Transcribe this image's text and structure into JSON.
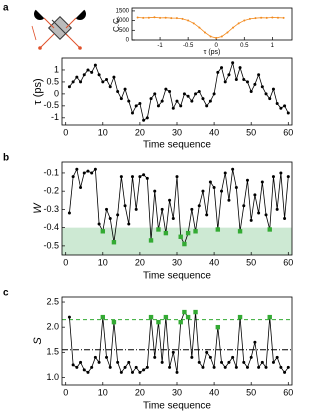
{
  "panel_labels": [
    "a",
    "b",
    "c"
  ],
  "chart_data": [
    {
      "type": "line",
      "x_label": "τ (ps)",
      "y_label": "C.C.",
      "x": [
        -1.4,
        -1.3,
        -1.2,
        -1.1,
        -1.0,
        -0.9,
        -0.8,
        -0.7,
        -0.6,
        -0.5,
        -0.4,
        -0.3,
        -0.2,
        -0.1,
        0,
        0.1,
        0.2,
        0.3,
        0.4,
        0.5,
        0.6,
        0.7,
        0.8,
        0.9,
        1.0,
        1.1,
        1.2
      ],
      "series": [
        {
          "color": "#f28a1e",
          "values": [
            1160,
            1140,
            1150,
            1170,
            1140,
            1150,
            1130,
            1129,
            1091,
            1008,
            858,
            639,
            388,
            181,
            100,
            181,
            388,
            639,
            858,
            1008,
            1091,
            1129,
            1150,
            1140,
            1160,
            1150,
            1140
          ]
        }
      ],
      "xlim": [
        -1.5,
        1.35
      ],
      "xticks": [
        -1,
        -0.5,
        0,
        0.5,
        1
      ],
      "ylim": [
        0,
        1650
      ],
      "yticks": [
        0,
        500,
        1000,
        1500
      ]
    },
    {
      "type": "line",
      "x_label": "Time sequence",
      "y_label": "τ (ps)",
      "x": [
        1,
        2,
        3,
        4,
        5,
        6,
        7,
        8,
        9,
        10,
        11,
        12,
        13,
        14,
        15,
        16,
        17,
        18,
        19,
        20,
        21,
        22,
        23,
        24,
        25,
        26,
        27,
        28,
        29,
        30,
        31,
        32,
        33,
        34,
        35,
        36,
        37,
        38,
        39,
        40,
        41,
        42,
        43,
        44,
        45,
        46,
        47,
        48,
        49,
        50,
        51,
        52,
        53,
        54,
        55,
        56,
        57,
        58,
        59,
        60
      ],
      "series": [
        {
          "color": "#000000",
          "values": [
            0.3,
            0.5,
            0.7,
            0.5,
            0.8,
            1.0,
            0.9,
            1.2,
            0.8,
            0.5,
            0.6,
            0.3,
            0.7,
            0.1,
            -0.2,
            0.2,
            -0.3,
            -0.8,
            -0.5,
            -0.4,
            -1.1,
            -1.0,
            -0.2,
            0.0,
            -0.5,
            -0.3,
            0.2,
            0.1,
            -0.6,
            -0.3,
            -0.5,
            0.0,
            -0.1,
            -0.3,
            0.0,
            0.1,
            -0.2,
            -0.5,
            -0.3,
            0.0,
            0.9,
            1.1,
            0.5,
            0.8,
            1.3,
            0.6,
            1.1,
            0.6,
            0.5,
            0.1,
            0.4,
            0.8,
            0.3,
            0.0,
            -0.2,
            0.2,
            -0.4,
            -0.6,
            -0.5,
            -0.8
          ]
        }
      ],
      "xlim": [
        -1,
        61
      ],
      "xticks": [
        0,
        10,
        20,
        30,
        40,
        50,
        60
      ],
      "ylim": [
        -1.3,
        1.5
      ],
      "yticks": [
        -1,
        -0.5,
        0,
        0.5,
        1
      ]
    },
    {
      "type": "line",
      "x_label": "Time sequence",
      "y_label": "W",
      "x": [
        1,
        2,
        3,
        4,
        5,
        6,
        7,
        8,
        9,
        10,
        11,
        12,
        13,
        14,
        15,
        16,
        17,
        18,
        19,
        20,
        21,
        22,
        23,
        24,
        25,
        26,
        27,
        28,
        29,
        30,
        31,
        32,
        33,
        34,
        35,
        36,
        37,
        38,
        39,
        40,
        41,
        42,
        43,
        44,
        45,
        46,
        47,
        48,
        49,
        50,
        51,
        52,
        53,
        54,
        55,
        56,
        57,
        58,
        59,
        60
      ],
      "series": [
        {
          "color": "#000000",
          "values": [
            -0.32,
            -0.12,
            -0.08,
            -0.18,
            -0.1,
            -0.09,
            -0.1,
            -0.08,
            -0.38,
            -0.42,
            -0.3,
            -0.35,
            -0.48,
            -0.33,
            -0.12,
            -0.28,
            -0.38,
            -0.12,
            -0.3,
            -0.12,
            -0.11,
            -0.13,
            -0.47,
            -0.2,
            -0.41,
            -0.3,
            -0.43,
            -0.25,
            -0.35,
            -0.12,
            -0.45,
            -0.49,
            -0.43,
            -0.3,
            -0.42,
            -0.28,
            -0.2,
            -0.33,
            -0.15,
            -0.18,
            -0.41,
            -0.2,
            -0.1,
            -0.25,
            -0.08,
            -0.18,
            -0.42,
            -0.28,
            -0.14,
            -0.36,
            -0.22,
            -0.32,
            -0.15,
            -0.33,
            -0.41,
            -0.12,
            -0.3,
            -0.1,
            -0.35,
            -0.12
          ],
          "point_colors": [
            "#000000",
            "#000000",
            "#000000",
            "#000000",
            "#000000",
            "#000000",
            "#000000",
            "#000000",
            "#000000",
            "#33aa33",
            "#000000",
            "#000000",
            "#33aa33",
            "#000000",
            "#000000",
            "#000000",
            "#000000",
            "#000000",
            "#000000",
            "#000000",
            "#000000",
            "#000000",
            "#33aa33",
            "#000000",
            "#33aa33",
            "#000000",
            "#33aa33",
            "#000000",
            "#000000",
            "#000000",
            "#33aa33",
            "#33aa33",
            "#33aa33",
            "#000000",
            "#33aa33",
            "#000000",
            "#000000",
            "#000000",
            "#000000",
            "#000000",
            "#33aa33",
            "#000000",
            "#000000",
            "#000000",
            "#000000",
            "#000000",
            "#33aa33",
            "#000000",
            "#000000",
            "#000000",
            "#000000",
            "#000000",
            "#000000",
            "#000000",
            "#33aa33",
            "#000000",
            "#000000",
            "#000000",
            "#000000",
            "#000000"
          ]
        }
      ],
      "shade": {
        "below": -0.4,
        "color": "#cde9d3"
      },
      "xlim": [
        -1,
        61
      ],
      "xticks": [
        0,
        10,
        20,
        30,
        40,
        50,
        60
      ],
      "ylim": [
        -0.55,
        -0.04
      ],
      "yticks": [
        -0.5,
        -0.4,
        -0.3,
        -0.2,
        -0.1
      ]
    },
    {
      "type": "line",
      "x_label": "Time sequence",
      "y_label": "S",
      "x": [
        1,
        2,
        3,
        4,
        5,
        6,
        7,
        8,
        9,
        10,
        11,
        12,
        13,
        14,
        15,
        16,
        17,
        18,
        19,
        20,
        21,
        22,
        23,
        24,
        25,
        26,
        27,
        28,
        29,
        30,
        31,
        32,
        33,
        34,
        35,
        36,
        37,
        38,
        39,
        40,
        41,
        42,
        43,
        44,
        45,
        46,
        47,
        48,
        49,
        50,
        51,
        52,
        53,
        54,
        55,
        56,
        57,
        58,
        59,
        60
      ],
      "series": [
        {
          "color": "#000000",
          "values": [
            2.2,
            1.25,
            1.2,
            1.3,
            1.15,
            1.1,
            1.2,
            1.4,
            1.3,
            2.2,
            1.4,
            1.2,
            2.1,
            1.3,
            1.1,
            1.2,
            1.3,
            1.1,
            1.2,
            1.1,
            1.15,
            1.2,
            2.2,
            1.4,
            2.1,
            1.3,
            2.2,
            1.2,
            1.5,
            1.1,
            2.1,
            2.3,
            2.2,
            1.4,
            2.3,
            1.3,
            1.2,
            1.5,
            1.4,
            1.2,
            2.0,
            1.3,
            1.2,
            1.3,
            1.4,
            1.2,
            2.2,
            1.3,
            1.2,
            1.4,
            1.7,
            1.2,
            1.3,
            1.2,
            2.2,
            1.3,
            1.4,
            1.2,
            1.1,
            1.2
          ],
          "point_colors": [
            "#000000",
            "#000000",
            "#000000",
            "#000000",
            "#000000",
            "#000000",
            "#000000",
            "#000000",
            "#000000",
            "#33aa33",
            "#000000",
            "#000000",
            "#33aa33",
            "#000000",
            "#000000",
            "#000000",
            "#000000",
            "#000000",
            "#000000",
            "#000000",
            "#000000",
            "#000000",
            "#33aa33",
            "#000000",
            "#33aa33",
            "#000000",
            "#33aa33",
            "#000000",
            "#000000",
            "#000000",
            "#33aa33",
            "#33aa33",
            "#33aa33",
            "#000000",
            "#33aa33",
            "#000000",
            "#000000",
            "#000000",
            "#000000",
            "#000000",
            "#33aa33",
            "#000000",
            "#000000",
            "#000000",
            "#000000",
            "#000000",
            "#33aa33",
            "#000000",
            "#000000",
            "#000000",
            "#000000",
            "#000000",
            "#000000",
            "#000000",
            "#33aa33",
            "#000000",
            "#000000",
            "#000000",
            "#000000",
            "#000000"
          ]
        }
      ],
      "hlines": [
        {
          "value": 2.15,
          "color": "#33aa33",
          "dash": "4 3"
        },
        {
          "value": 1.55,
          "color": "#000000",
          "dash": "6 2 1 2"
        }
      ],
      "xlim": [
        -1,
        61
      ],
      "xticks": [
        0,
        10,
        20,
        30,
        40,
        50,
        60
      ],
      "ylim": [
        0.85,
        2.6
      ],
      "yticks": [
        {
          "value": 1,
          "label": "1.0"
        },
        1.5,
        {
          "value": 2,
          "label": "2.0"
        },
        2.5
      ]
    }
  ]
}
